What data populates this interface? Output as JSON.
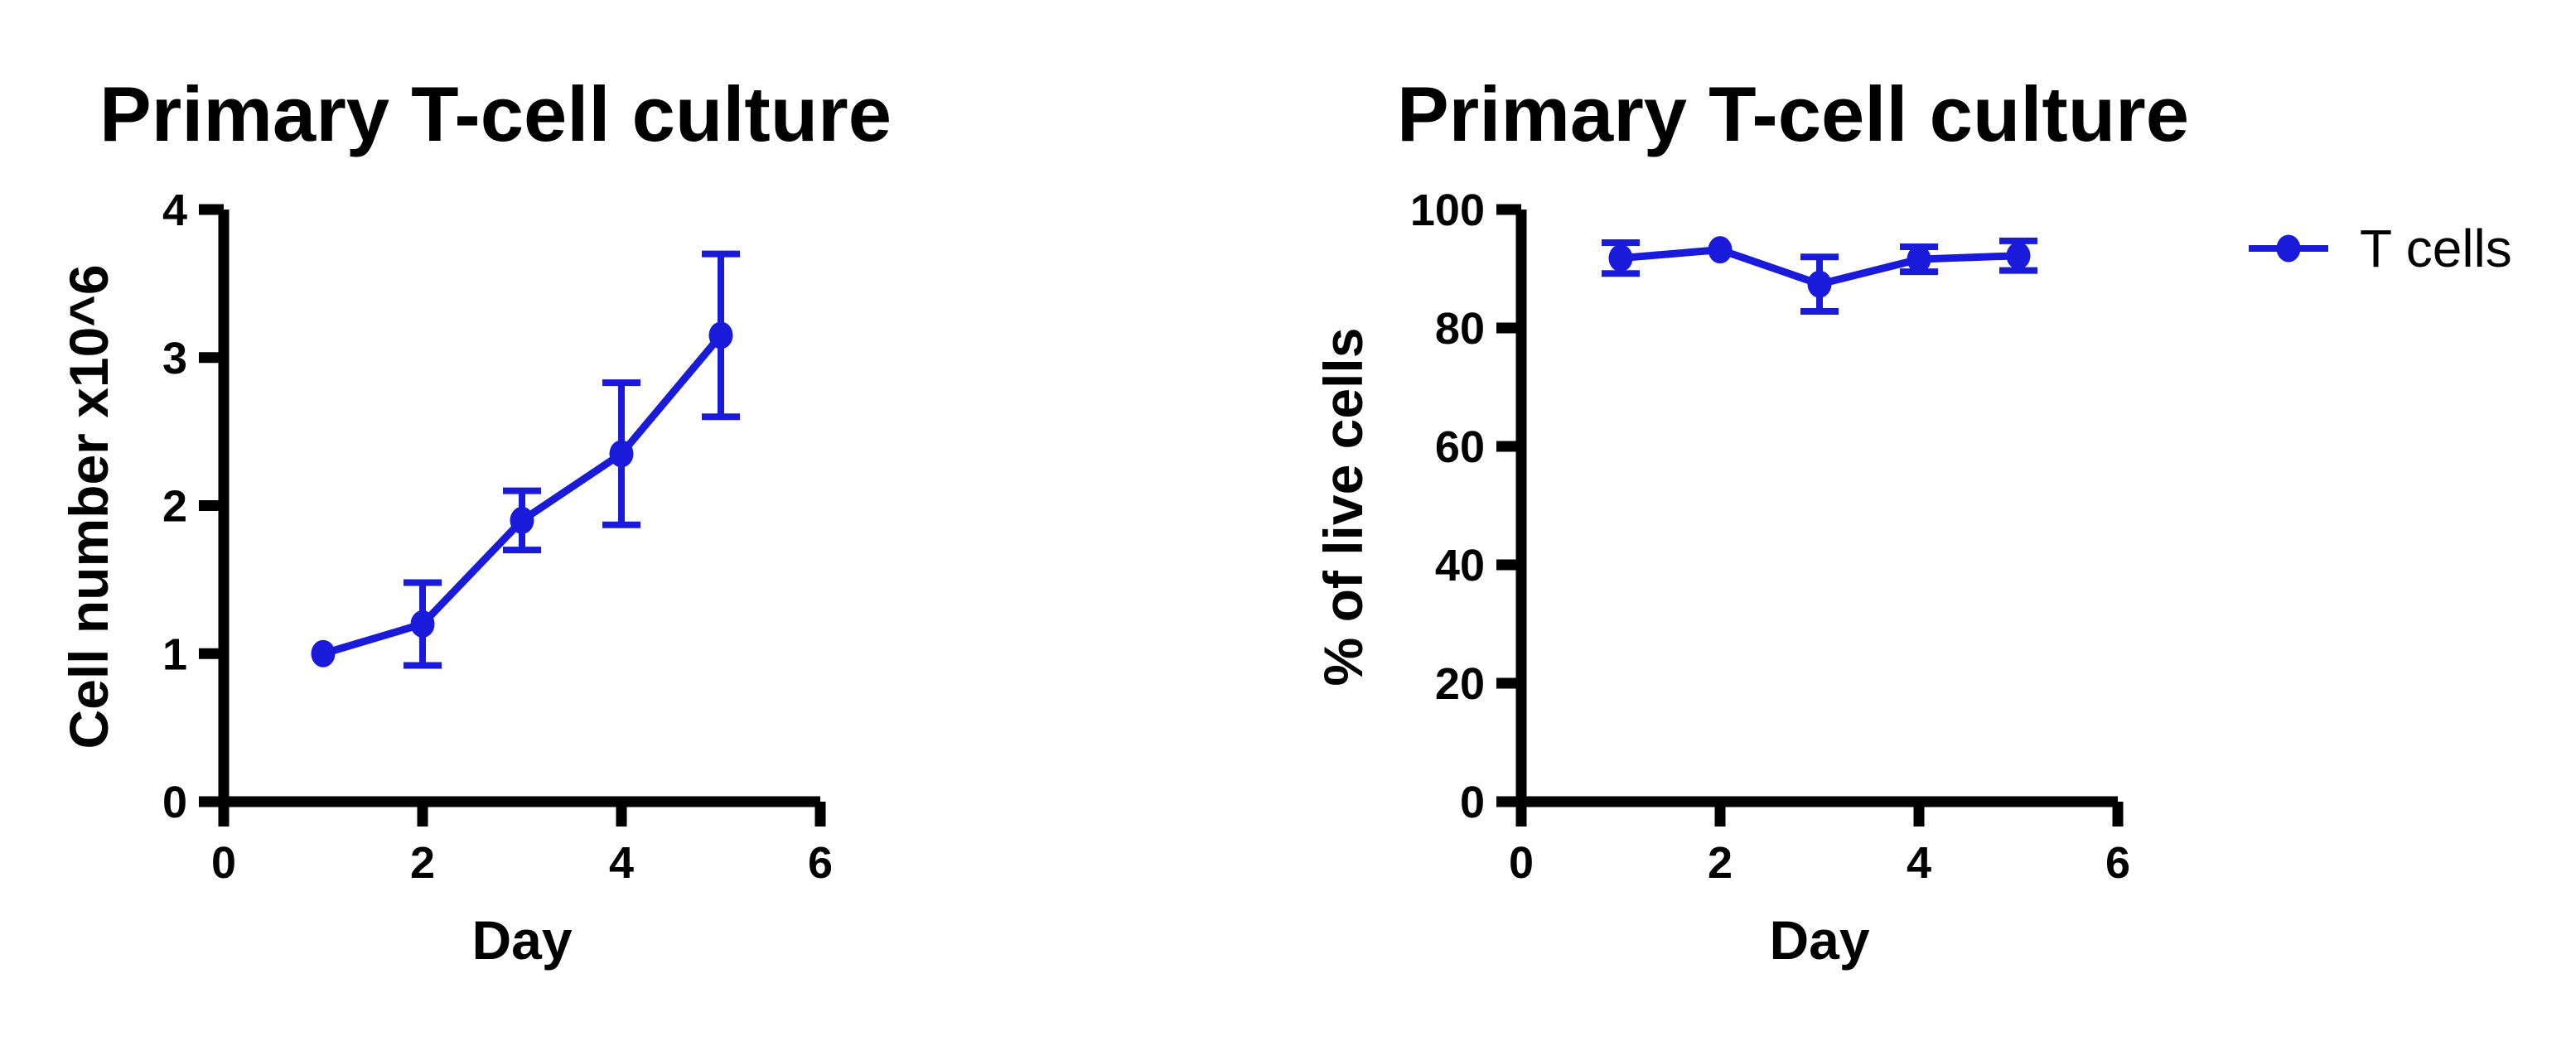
{
  "page": {
    "background": "#ffffff",
    "text_color": "#000000"
  },
  "chart_data": [
    {
      "id": "cell-number-chart",
      "type": "line",
      "title": "Primary T-cell culture",
      "xlabel": "Day",
      "ylabel": "Cell number x10^6",
      "xlim": [
        0,
        6
      ],
      "ylim": [
        0,
        4
      ],
      "xticks": [
        0,
        2,
        4,
        6
      ],
      "yticks": [
        0,
        1,
        2,
        3,
        4
      ],
      "grid": false,
      "series": [
        {
          "name": "T cells",
          "color": "#1A1ADB",
          "marker": "circle",
          "x": [
            1,
            2,
            3,
            4,
            5
          ],
          "mean": [
            1.0,
            1.2,
            1.9,
            2.35,
            3.15
          ],
          "sd": [
            0.05,
            0.28,
            0.2,
            0.48,
            0.55
          ]
        }
      ],
      "legend": null
    },
    {
      "id": "viability-chart",
      "type": "line",
      "title": "Primary T-cell culture",
      "xlabel": "Day",
      "ylabel": "% of live cells",
      "xlim": [
        0,
        6
      ],
      "ylim": [
        0,
        100
      ],
      "xticks": [
        0,
        2,
        4,
        6
      ],
      "yticks": [
        0,
        20,
        40,
        60,
        80,
        100
      ],
      "grid": false,
      "series": [
        {
          "name": "T cells",
          "color": "#1A1ADB",
          "marker": "circle",
          "x": [
            1,
            2,
            3,
            4,
            5
          ],
          "mean": [
            91.8,
            93.2,
            87.4,
            91.6,
            92.2
          ],
          "sd": [
            2.6,
            0.5,
            4.6,
            2.1,
            2.5
          ]
        }
      ],
      "legend": {
        "position": "right",
        "label": "T cells"
      }
    }
  ]
}
